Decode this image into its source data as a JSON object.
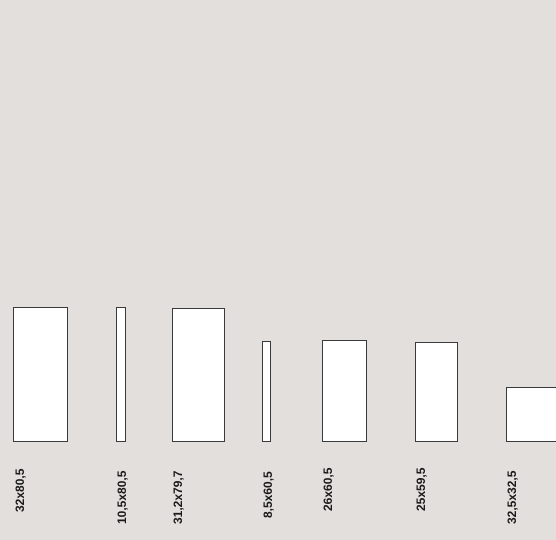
{
  "panels": [
    {
      "id": "p1",
      "label": "32x80,5",
      "width_cm": 32,
      "height_cm": 80.5
    },
    {
      "id": "p2",
      "label": "10,5x80,5",
      "width_cm": 10.5,
      "height_cm": 80.5
    },
    {
      "id": "p3",
      "label": "31,2x79,7",
      "width_cm": 31.2,
      "height_cm": 79.7
    },
    {
      "id": "p4",
      "label": "8,5x60,5",
      "width_cm": 8.5,
      "height_cm": 60.5
    },
    {
      "id": "p5",
      "label": "26x60,5",
      "width_cm": 26,
      "height_cm": 60.5
    },
    {
      "id": "p6",
      "label": "25x59,5",
      "width_cm": 25,
      "height_cm": 59.5
    },
    {
      "id": "p7",
      "label": "32,5x32,5",
      "width_cm": 32.5,
      "height_cm": 32.5
    }
  ],
  "colors": {
    "background": "#e3dfdc",
    "panel_fill": "#ffffff",
    "panel_border": "#3a3a3a",
    "label_text": "#1a1a1a"
  }
}
